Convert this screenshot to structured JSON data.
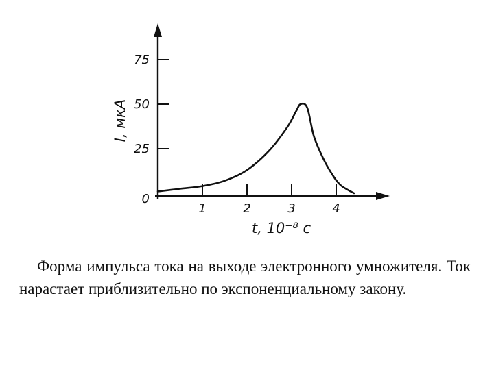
{
  "chart_data": {
    "type": "line",
    "xlabel": "t, 10⁻⁸ c",
    "ylabel": "I, мкА",
    "x_ticks": [
      1,
      2,
      3,
      4
    ],
    "x_tick_labels": [
      "1",
      "2",
      "3",
      "4"
    ],
    "y_ticks": [
      0,
      25,
      50,
      75
    ],
    "y_tick_labels": [
      "0",
      "25",
      "50",
      "75"
    ],
    "xlim": [
      0,
      5.3
    ],
    "ylim": [
      0,
      85
    ],
    "grid": false,
    "series": [
      {
        "x": [
          0,
          0.5,
          1.0,
          1.5,
          2.0,
          2.5,
          2.9,
          3.1,
          3.2,
          3.35,
          3.5,
          3.7,
          3.9,
          4.1,
          4.4
        ],
        "y": [
          1,
          2.5,
          4,
          7,
          13,
          24,
          37,
          46,
          50,
          48,
          32,
          20,
          11,
          4.5,
          0
        ],
        "color": "#111111"
      }
    ]
  },
  "caption": "Форма импульса тока на выходе электронного умножителя. Ток нарастает приблизительно по экспоненциальному закону."
}
